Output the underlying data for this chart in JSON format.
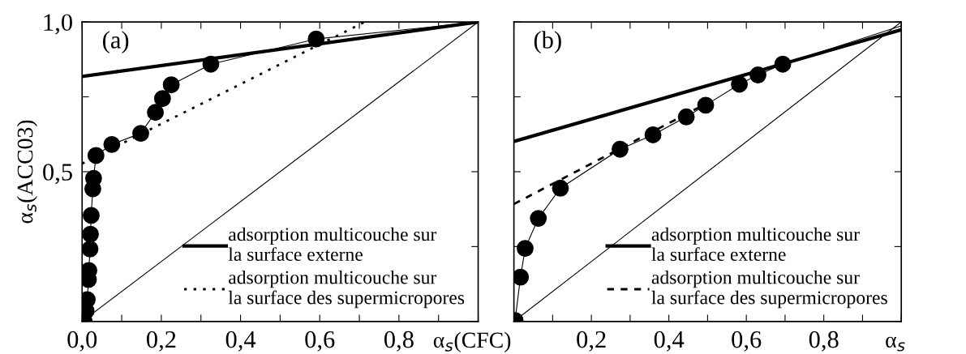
{
  "chart_data": [
    {
      "type": "line",
      "xlabel": "α$_{s}$(CFC)",
      "ylabel": "α$_{s}$(ACC03)",
      "annotations": [
        "(a)"
      ],
      "xlim": [
        0,
        1
      ],
      "ylim": [
        0,
        1
      ],
      "xticks": [
        {
          "value": 0,
          "label": "0,0"
        },
        {
          "value": 0.1,
          "label": null
        },
        {
          "value": 0.2,
          "label": "0,2"
        },
        {
          "value": 0.3,
          "label": null
        },
        {
          "value": 0.4,
          "label": "0,4"
        },
        {
          "value": 0.5,
          "label": null
        },
        {
          "value": 0.6,
          "label": "0,6"
        },
        {
          "value": 0.7,
          "label": null
        },
        {
          "value": 0.8,
          "label": "0,8"
        },
        {
          "value": 0.9,
          "label": null
        },
        {
          "value": 1.0,
          "label": null
        }
      ],
      "yticks": [
        {
          "value": 0,
          "label": null
        },
        {
          "value": 0.25,
          "label": null
        },
        {
          "value": 0.5,
          "label": "0,5"
        },
        {
          "value": 0.75,
          "label": null
        },
        {
          "value": 1.0,
          "label": "1,0"
        }
      ],
      "legend": "bottom right",
      "grid": false,
      "series": [
        {
          "color": "#000000",
          "line_style": "solid",
          "x": [
            0,
            1
          ],
          "values": [
            0,
            1
          ]
        },
        {
          "name": "adsorption multicouche sur\nla surface externe",
          "color": "#000000",
          "line_style": "solid",
          "x": [
            0,
            1
          ],
          "values": [
            0.818,
            1
          ]
        },
        {
          "name": "adsorption multicouche sur\nla surface des supermicropores",
          "color": "#000000",
          "line_style": "dotted",
          "x": [
            0,
            0.713
          ],
          "values": [
            0.527,
            1
          ]
        },
        {
          "color": "#000000",
          "line_style": "solid",
          "x": [
            0.591,
            1
          ],
          "values": [
            0.943,
            1
          ]
        },
        {
          "color": "#000000",
          "line_style": "solid",
          "marker": "circle",
          "x": [
            0.005,
            0.01,
            0.013,
            0.016,
            0.017,
            0.02,
            0.021,
            0.023,
            0.027,
            0.029,
            0.035,
            0.075,
            0.148,
            0.185,
            0.203,
            0.225,
            0.325,
            0.591
          ],
          "values": [
            0.002,
            0.035,
            0.073,
            0.14,
            0.17,
            0.242,
            0.291,
            0.354,
            0.443,
            0.478,
            0.554,
            0.591,
            0.628,
            0.698,
            0.744,
            0.79,
            0.859,
            0.943
          ]
        }
      ]
    },
    {
      "type": "line",
      "xlabel": "α$_{s}$",
      "annotations": [
        "(b)"
      ],
      "xlim": [
        0,
        1
      ],
      "ylim": [
        0,
        1
      ],
      "tick_labels": "x",
      "xticks": [
        {
          "value": 0,
          "label": null
        },
        {
          "value": 0.1,
          "label": null
        },
        {
          "value": 0.2,
          "label": "0,2"
        },
        {
          "value": 0.3,
          "label": null
        },
        {
          "value": 0.4,
          "label": "0,4"
        },
        {
          "value": 0.5,
          "label": null
        },
        {
          "value": 0.6,
          "label": "0,6"
        },
        {
          "value": 0.7,
          "label": null
        },
        {
          "value": 0.8,
          "label": "0,8"
        },
        {
          "value": 0.9,
          "label": null
        },
        {
          "value": 1.0,
          "label": null
        }
      ],
      "yticks": [
        {
          "value": 0,
          "label": null
        },
        {
          "value": 0.25,
          "label": null
        },
        {
          "value": 0.5,
          "label": null
        },
        {
          "value": 0.75,
          "label": null
        },
        {
          "value": 1.0,
          "label": null
        }
      ],
      "legend": "bottom right",
      "grid": false,
      "series": [
        {
          "color": "#000000",
          "line_style": "solid",
          "x": [
            0,
            1
          ],
          "values": [
            0,
            1
          ]
        },
        {
          "name": "adsorption multicouche sur\nla surface externe",
          "color": "#000000",
          "line_style": "solid",
          "x": [
            0,
            1
          ],
          "values": [
            0.601,
            0.974
          ]
        },
        {
          "name": "adsorption multicouche sur\nla surface des supermicropores",
          "color": "#000000",
          "line_style": "dashed",
          "x": [
            0,
            0.48
          ],
          "values": [
            0.392,
            0.716
          ]
        },
        {
          "color": "#000000",
          "line_style": "solid",
          "x": [
            0.694,
            1
          ],
          "values": [
            0.859,
            0.987
          ]
        },
        {
          "color": "#000000",
          "line_style": "solid",
          "marker": "circle",
          "x": [
            0.003,
            0.017,
            0.029,
            0.063,
            0.12,
            0.274,
            0.359,
            0.445,
            0.495,
            0.582,
            0.63,
            0.694
          ],
          "values": [
            0.003,
            0.148,
            0.244,
            0.344,
            0.445,
            0.575,
            0.623,
            0.683,
            0.722,
            0.792,
            0.823,
            0.859
          ]
        }
      ]
    }
  ]
}
